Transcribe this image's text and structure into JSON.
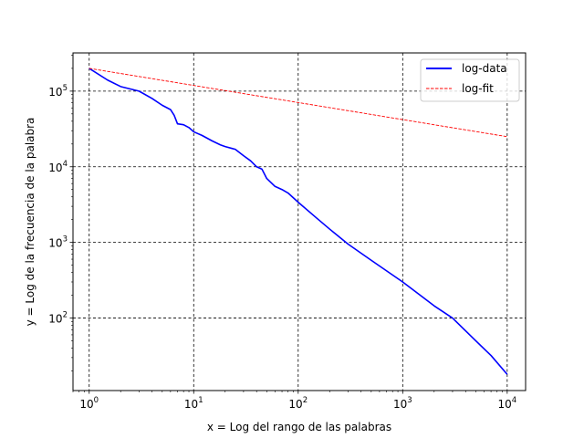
{
  "chart_data": {
    "type": "line",
    "title": "",
    "xlabel": "x = Log del rango de las palabras",
    "ylabel": "y = Log de la frecuencia de la palabra",
    "xscale": "log",
    "yscale": "log",
    "xlim": [
      0.7,
      15000
    ],
    "ylim": [
      11,
      320000
    ],
    "grid": true,
    "grid_style": "dashed",
    "legend_position": "upper-right",
    "x_ticks": [
      {
        "value": 1,
        "base": "10",
        "exp": "0"
      },
      {
        "value": 10,
        "base": "10",
        "exp": "1"
      },
      {
        "value": 100,
        "base": "10",
        "exp": "2"
      },
      {
        "value": 1000,
        "base": "10",
        "exp": "3"
      },
      {
        "value": 10000,
        "base": "10",
        "exp": "4"
      }
    ],
    "y_ticks": [
      {
        "value": 100,
        "base": "10",
        "exp": "2"
      },
      {
        "value": 1000,
        "base": "10",
        "exp": "3"
      },
      {
        "value": 10000,
        "base": "10",
        "exp": "4"
      },
      {
        "value": 100000,
        "base": "10",
        "exp": "5"
      }
    ],
    "series": [
      {
        "name": "log-data",
        "color": "#0000ff",
        "style": "solid",
        "x": [
          1,
          1.5,
          2,
          3,
          4,
          5,
          6,
          6.5,
          7,
          8,
          9,
          10,
          12,
          15,
          18,
          20,
          25,
          30,
          35,
          40,
          45,
          50,
          60,
          70,
          80,
          100,
          150,
          200,
          300,
          500,
          1000,
          2000,
          3000,
          5000,
          7000,
          10000
        ],
        "y": [
          200000,
          140000,
          115000,
          100000,
          80000,
          65000,
          57000,
          48000,
          37000,
          36000,
          33000,
          29000,
          26000,
          22000,
          19500,
          18500,
          17000,
          14000,
          12000,
          10000,
          9300,
          7000,
          5500,
          5000,
          4500,
          3400,
          2100,
          1500,
          950,
          580,
          300,
          145,
          100,
          50,
          32,
          18
        ]
      },
      {
        "name": "log-fit",
        "color": "#ff0000",
        "style": "dashed",
        "x": [
          1,
          10000
        ],
        "y": [
          200000,
          25000
        ]
      }
    ]
  }
}
